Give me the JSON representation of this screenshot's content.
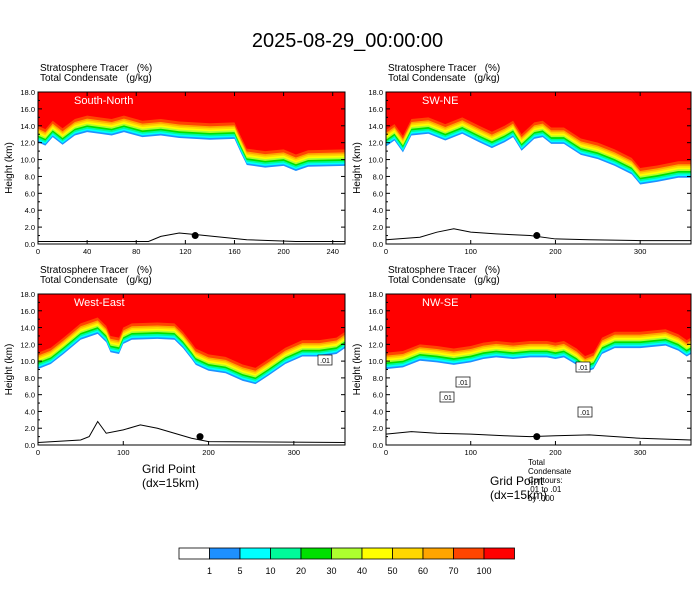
{
  "title": "2025-08-29_00:00:00",
  "header_line1": "Stratosphere Tracer   (%)",
  "header_line2": "Total Condensate   (g/kg)",
  "y_axis_title": "Height (km)",
  "x_axis_title": "Grid Point (dx=15km)",
  "contour_note": "Total Condensate Contours: .01 to .01 by .000",
  "contour_label": ".01",
  "y_ticks": [
    "0.0",
    "2.0",
    "4.0",
    "6.0",
    "8.0",
    "10.0",
    "12.0",
    "14.0",
    "16.0",
    "18.0"
  ],
  "colorbar": {
    "labels": [
      "1",
      "5",
      "10",
      "20",
      "30",
      "40",
      "50",
      "60",
      "70",
      "100"
    ],
    "colors": [
      "#ffffff",
      "#1e90ff",
      "#00ffff",
      "#00fa9a",
      "#00e000",
      "#adff2f",
      "#ffff00",
      "#ffd700",
      "#ffa500",
      "#ff4500",
      "#ff0000"
    ]
  },
  "chart_data": [
    {
      "type": "heatmap",
      "name": "South-North",
      "xlim": [
        0,
        250
      ],
      "x_ticks": [
        0,
        40,
        80,
        120,
        160,
        200,
        240
      ],
      "ylim": [
        0,
        18
      ],
      "tropopause": [
        [
          0,
          14.0
        ],
        [
          6,
          13.6
        ],
        [
          12,
          14.6
        ],
        [
          20,
          13.7
        ],
        [
          30,
          14.8
        ],
        [
          40,
          15.2
        ],
        [
          50,
          15.0
        ],
        [
          60,
          14.8
        ],
        [
          70,
          15.2
        ],
        [
          85,
          14.6
        ],
        [
          100,
          14.8
        ],
        [
          115,
          14.5
        ],
        [
          140,
          14.3
        ],
        [
          160,
          14.4
        ],
        [
          165,
          12.8
        ],
        [
          170,
          11.3
        ],
        [
          185,
          11.0
        ],
        [
          200,
          11.2
        ],
        [
          210,
          10.6
        ],
        [
          220,
          11.1
        ],
        [
          250,
          11.2
        ]
      ],
      "terrain": [
        [
          0,
          0.3
        ],
        [
          90,
          0.3
        ],
        [
          100,
          0.9
        ],
        [
          115,
          1.3
        ],
        [
          130,
          1.1
        ],
        [
          150,
          0.8
        ],
        [
          170,
          0.5
        ],
        [
          210,
          0.3
        ],
        [
          250,
          0.3
        ]
      ],
      "marker": [
        128,
        1.0
      ]
    },
    {
      "type": "heatmap",
      "name": "SW-NE",
      "xlim": [
        0,
        360
      ],
      "x_ticks": [
        0,
        100,
        200,
        300
      ],
      "ylim": [
        0,
        18
      ],
      "tropopause": [
        [
          0,
          13.5
        ],
        [
          10,
          14.2
        ],
        [
          20,
          12.8
        ],
        [
          30,
          14.8
        ],
        [
          50,
          15.0
        ],
        [
          70,
          14.2
        ],
        [
          90,
          15.0
        ],
        [
          110,
          14.0
        ],
        [
          125,
          13.3
        ],
        [
          140,
          14.0
        ],
        [
          150,
          14.6
        ],
        [
          160,
          13.0
        ],
        [
          175,
          14.4
        ],
        [
          185,
          14.6
        ],
        [
          195,
          13.8
        ],
        [
          210,
          13.8
        ],
        [
          230,
          12.5
        ],
        [
          250,
          12.0
        ],
        [
          270,
          11.2
        ],
        [
          290,
          10.2
        ],
        [
          300,
          9.0
        ],
        [
          320,
          9.3
        ],
        [
          345,
          9.8
        ],
        [
          360,
          9.8
        ]
      ],
      "terrain": [
        [
          0,
          0.5
        ],
        [
          40,
          0.8
        ],
        [
          60,
          1.4
        ],
        [
          80,
          1.8
        ],
        [
          100,
          1.4
        ],
        [
          130,
          1.2
        ],
        [
          170,
          1.0
        ],
        [
          200,
          0.6
        ],
        [
          240,
          0.5
        ],
        [
          300,
          0.4
        ],
        [
          360,
          0.4
        ]
      ],
      "marker": [
        178,
        1.0
      ]
    },
    {
      "type": "heatmap",
      "name": "West-East",
      "xlim": [
        0,
        360
      ],
      "x_ticks": [
        0,
        100,
        200,
        300
      ],
      "ylim": [
        0,
        18
      ],
      "tropopause": [
        [
          0,
          11.0
        ],
        [
          15,
          11.6
        ],
        [
          30,
          12.8
        ],
        [
          50,
          14.5
        ],
        [
          70,
          15.2
        ],
        [
          80,
          14.2
        ],
        [
          85,
          13.0
        ],
        [
          95,
          12.8
        ],
        [
          100,
          14.0
        ],
        [
          110,
          14.5
        ],
        [
          140,
          14.6
        ],
        [
          160,
          14.5
        ],
        [
          170,
          13.5
        ],
        [
          180,
          12.2
        ],
        [
          185,
          11.5
        ],
        [
          200,
          10.8
        ],
        [
          220,
          10.5
        ],
        [
          240,
          9.6
        ],
        [
          255,
          9.2
        ],
        [
          270,
          10.2
        ],
        [
          290,
          11.6
        ],
        [
          310,
          12.5
        ],
        [
          330,
          12.5
        ],
        [
          350,
          12.8
        ],
        [
          360,
          13.5
        ]
      ],
      "terrain": [
        [
          0,
          0.3
        ],
        [
          50,
          0.6
        ],
        [
          60,
          1.0
        ],
        [
          70,
          2.8
        ],
        [
          80,
          1.4
        ],
        [
          100,
          1.8
        ],
        [
          120,
          2.4
        ],
        [
          140,
          2.0
        ],
        [
          160,
          1.4
        ],
        [
          180,
          0.8
        ],
        [
          200,
          0.4
        ],
        [
          360,
          0.3
        ]
      ],
      "marker": [
        190,
        1.0
      ]
    },
    {
      "type": "heatmap",
      "name": "NW-SE",
      "xlim": [
        0,
        360
      ],
      "x_ticks": [
        0,
        100,
        200,
        300
      ],
      "ylim": [
        0,
        18
      ],
      "tropopause": [
        [
          0,
          11.0
        ],
        [
          20,
          11.2
        ],
        [
          40,
          12.0
        ],
        [
          60,
          11.8
        ],
        [
          80,
          11.5
        ],
        [
          100,
          11.8
        ],
        [
          115,
          12.2
        ],
        [
          130,
          12.4
        ],
        [
          150,
          12.2
        ],
        [
          170,
          12.4
        ],
        [
          190,
          12.4
        ],
        [
          200,
          12.2
        ],
        [
          210,
          12.4
        ],
        [
          225,
          11.5
        ],
        [
          235,
          10.6
        ],
        [
          245,
          11.0
        ],
        [
          255,
          12.8
        ],
        [
          270,
          13.5
        ],
        [
          300,
          13.5
        ],
        [
          330,
          13.8
        ],
        [
          345,
          13.2
        ],
        [
          355,
          12.5
        ],
        [
          360,
          12.8
        ]
      ],
      "terrain": [
        [
          0,
          1.3
        ],
        [
          30,
          1.6
        ],
        [
          60,
          1.4
        ],
        [
          100,
          1.3
        ],
        [
          140,
          1.1
        ],
        [
          170,
          1.0
        ],
        [
          200,
          1.1
        ],
        [
          240,
          1.2
        ],
        [
          300,
          0.8
        ],
        [
          360,
          0.6
        ]
      ],
      "marker": [
        178,
        1.0
      ]
    }
  ]
}
